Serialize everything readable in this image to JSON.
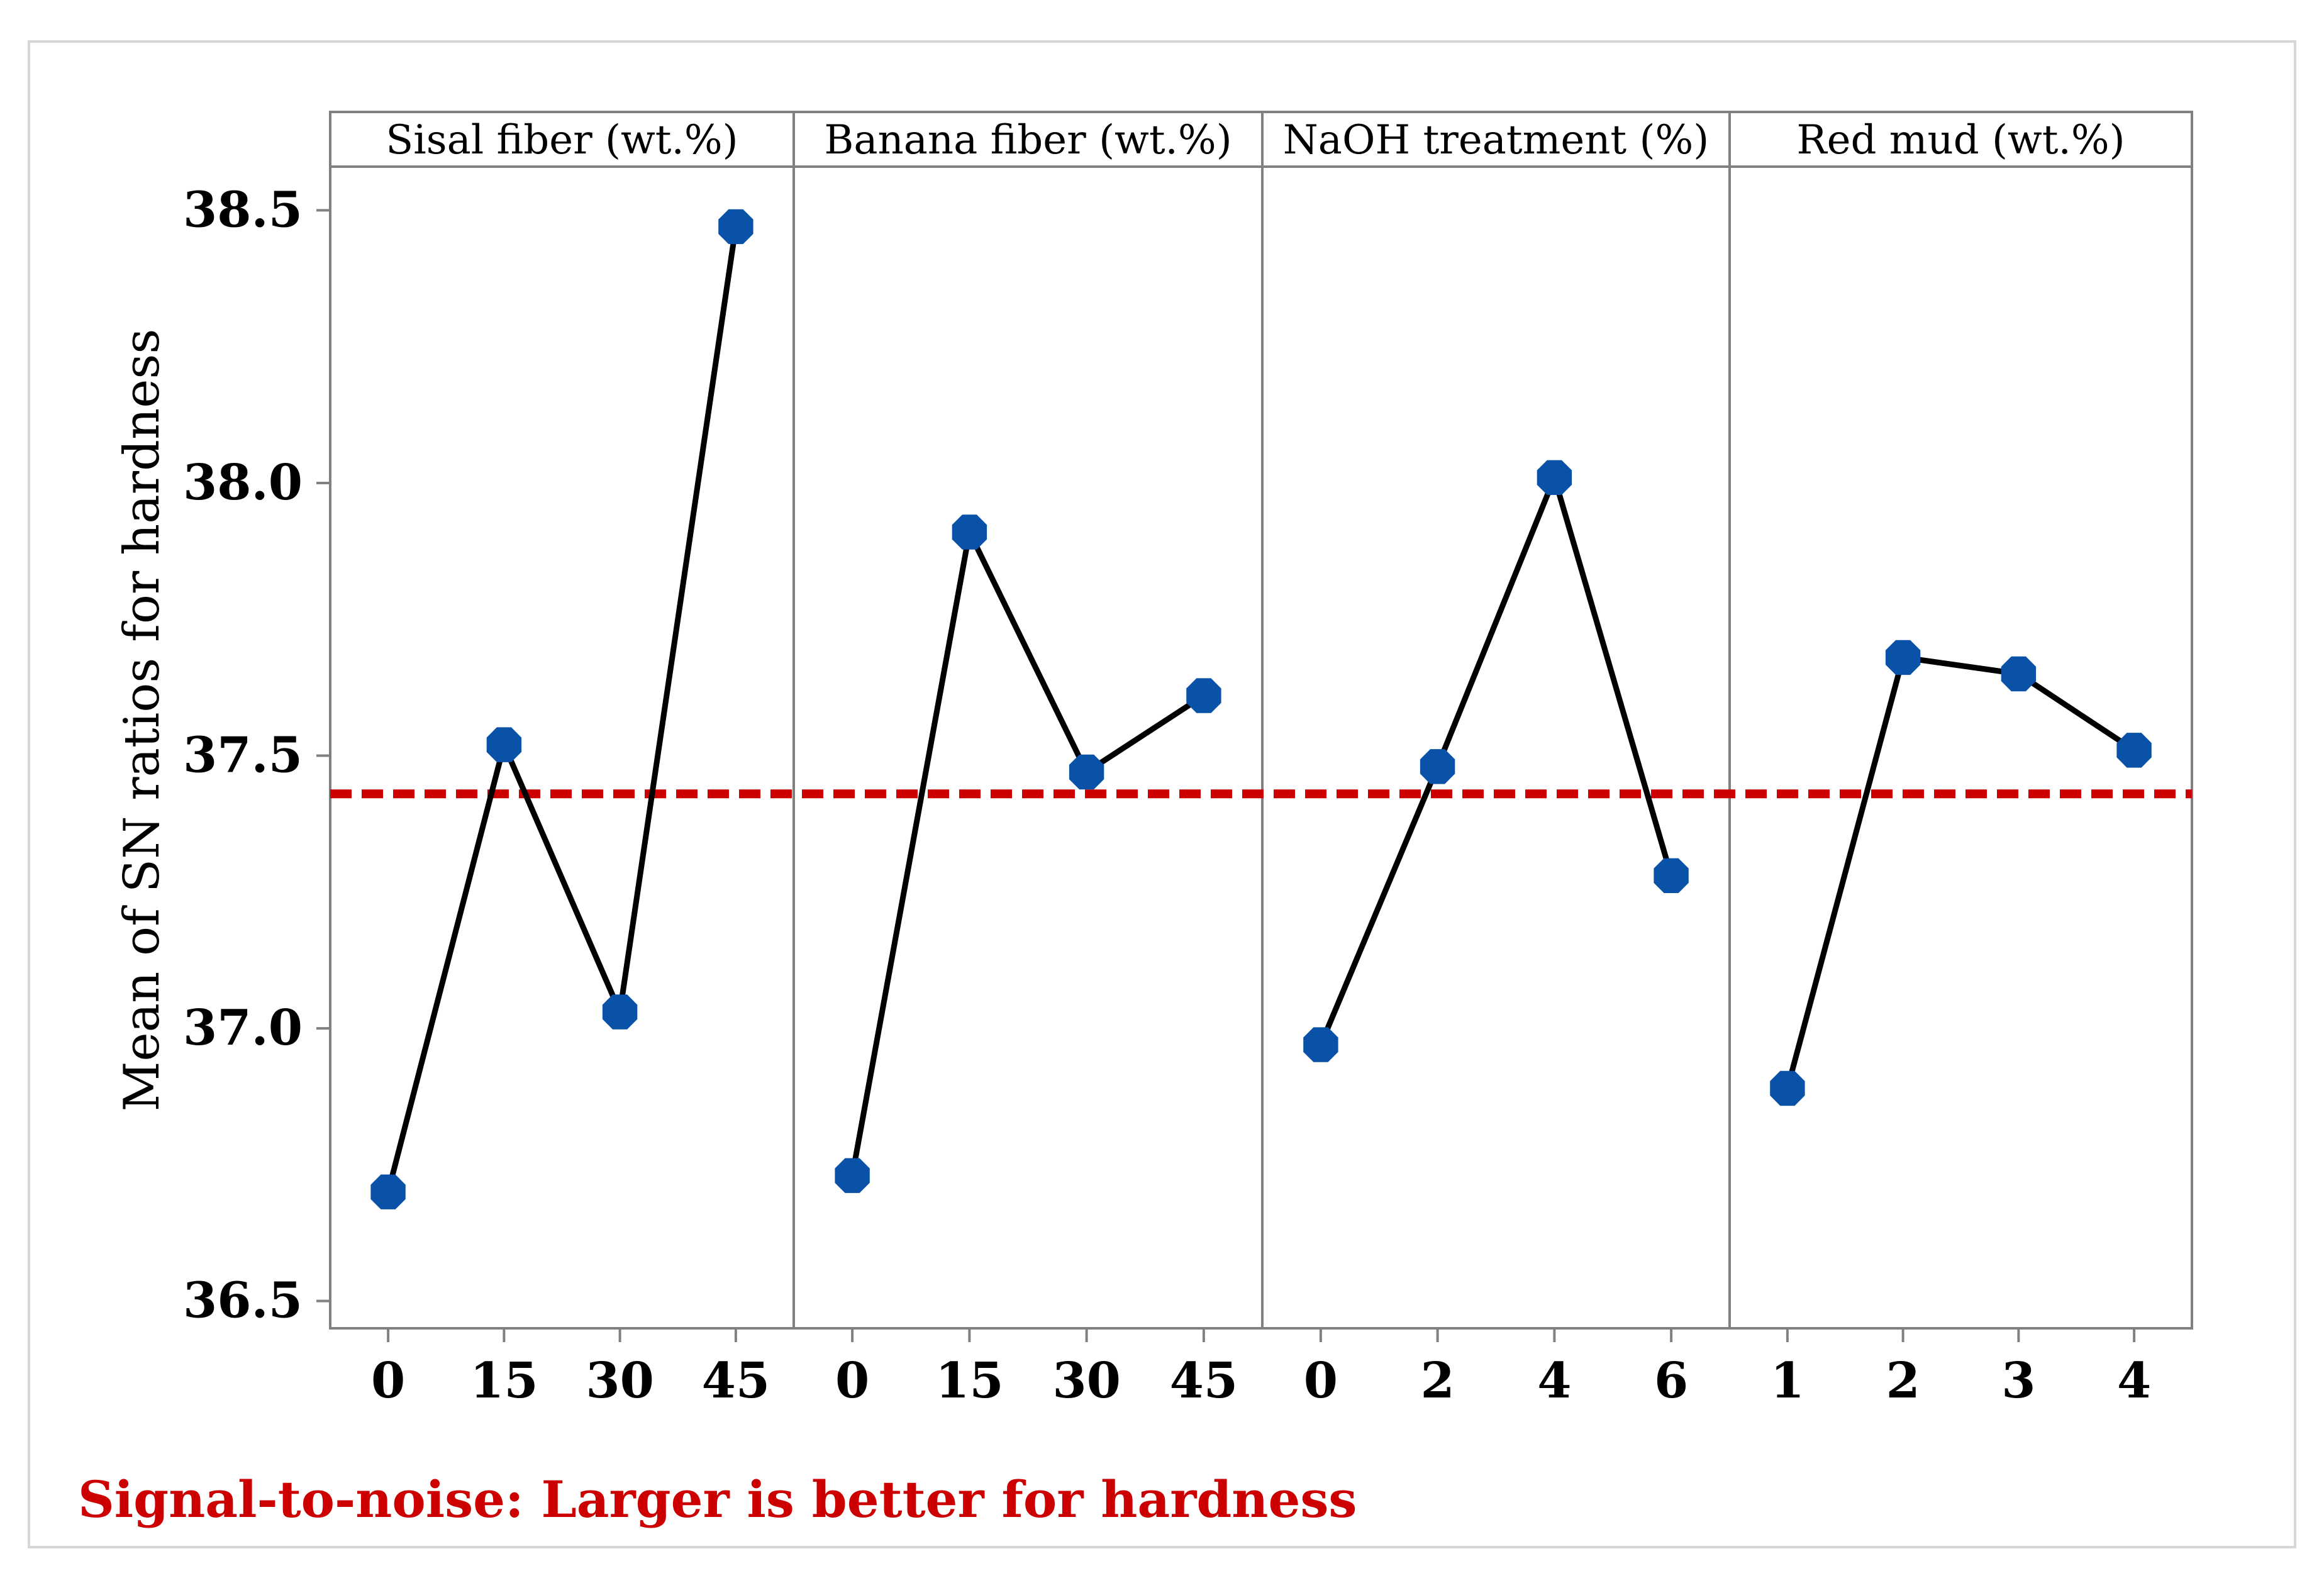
{
  "chart_data": {
    "type": "line",
    "ylabel": "Mean of SN ratios for hardness",
    "ylim": [
      36.45,
      38.58
    ],
    "yticks": [
      "36.5",
      "37.0",
      "37.5",
      "38.0",
      "38.5"
    ],
    "ytick_values": [
      36.5,
      37.0,
      37.5,
      38.0,
      38.5
    ],
    "reference_line": 37.43,
    "footnote": "Signal-to-noise: Larger is better for hardness",
    "grid": false,
    "legend": "none",
    "panels": [
      {
        "title": "Sisal fiber (wt.%)",
        "x": [
          "0",
          "15",
          "30",
          "45"
        ],
        "values": [
          36.7,
          37.52,
          37.03,
          38.47
        ]
      },
      {
        "title": "Banana fiber (wt.%)",
        "x": [
          "0",
          "15",
          "30",
          "45"
        ],
        "values": [
          36.73,
          37.91,
          37.47,
          37.61
        ]
      },
      {
        "title": "NaOH treatment (%)",
        "x": [
          "0",
          "2",
          "4",
          "6"
        ],
        "values": [
          36.97,
          37.48,
          38.01,
          37.28
        ]
      },
      {
        "title": "Red mud (wt.%)",
        "x": [
          "1",
          "2",
          "3",
          "4"
        ],
        "values": [
          36.89,
          37.68,
          37.65,
          37.51
        ]
      }
    ],
    "colors": {
      "line": "#000000",
      "marker": "#0a52a8",
      "reference": "#cc0000",
      "footnote": "#cc0000",
      "frame": "#808080",
      "outer_border": "#d6d6d6"
    }
  }
}
